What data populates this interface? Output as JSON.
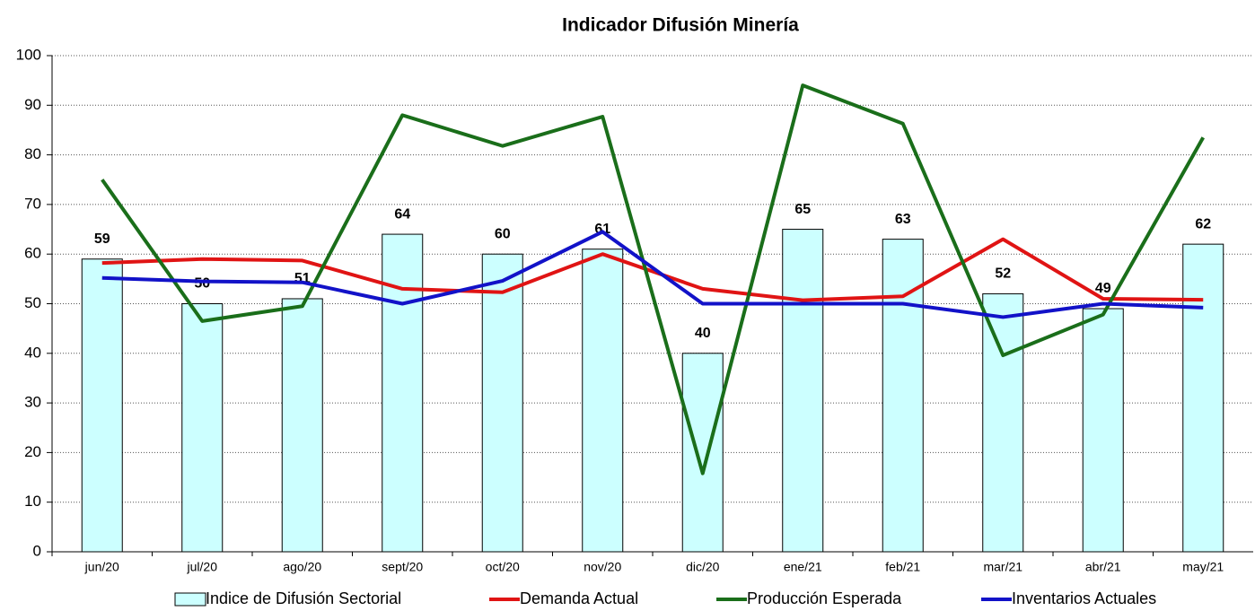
{
  "chart_data": {
    "type": "bar",
    "title": "Indicador Difusión Minería",
    "categories": [
      "jun/20",
      "jul/20",
      "ago/20",
      "sept/20",
      "oct/20",
      "nov/20",
      "dic/20",
      "ene/21",
      "feb/21",
      "mar/21",
      "abr/21",
      "may/21"
    ],
    "series": [
      {
        "name": "Indice de Difusión Sectorial",
        "type": "bar",
        "color": "#ccffff",
        "values": [
          59,
          50,
          51,
          64,
          60,
          61,
          40,
          65,
          63,
          52,
          49,
          62
        ]
      },
      {
        "name": "Demanda Actual",
        "type": "line",
        "color": "#e01414",
        "values": [
          58.2,
          59,
          58.7,
          53,
          52.3,
          60,
          53,
          50.7,
          51.5,
          63,
          51,
          50.8
        ]
      },
      {
        "name": "Producción Esperada",
        "type": "line",
        "color": "#1a6e1a",
        "values": [
          75,
          46.5,
          49.5,
          88,
          81.8,
          87.7,
          15.8,
          94,
          86.3,
          39.6,
          47.8,
          83.5
        ]
      },
      {
        "name": "Inventarios Actuales",
        "type": "line",
        "color": "#1212c8",
        "values": [
          55.2,
          54.5,
          54.3,
          50,
          54.6,
          64.5,
          50,
          50,
          50,
          47.3,
          50,
          49.2
        ]
      }
    ],
    "ylim": [
      0,
      100
    ],
    "yticks": [
      0,
      10,
      20,
      30,
      40,
      50,
      60,
      70,
      80,
      90,
      100
    ],
    "grid": true,
    "legend": "bottom"
  }
}
